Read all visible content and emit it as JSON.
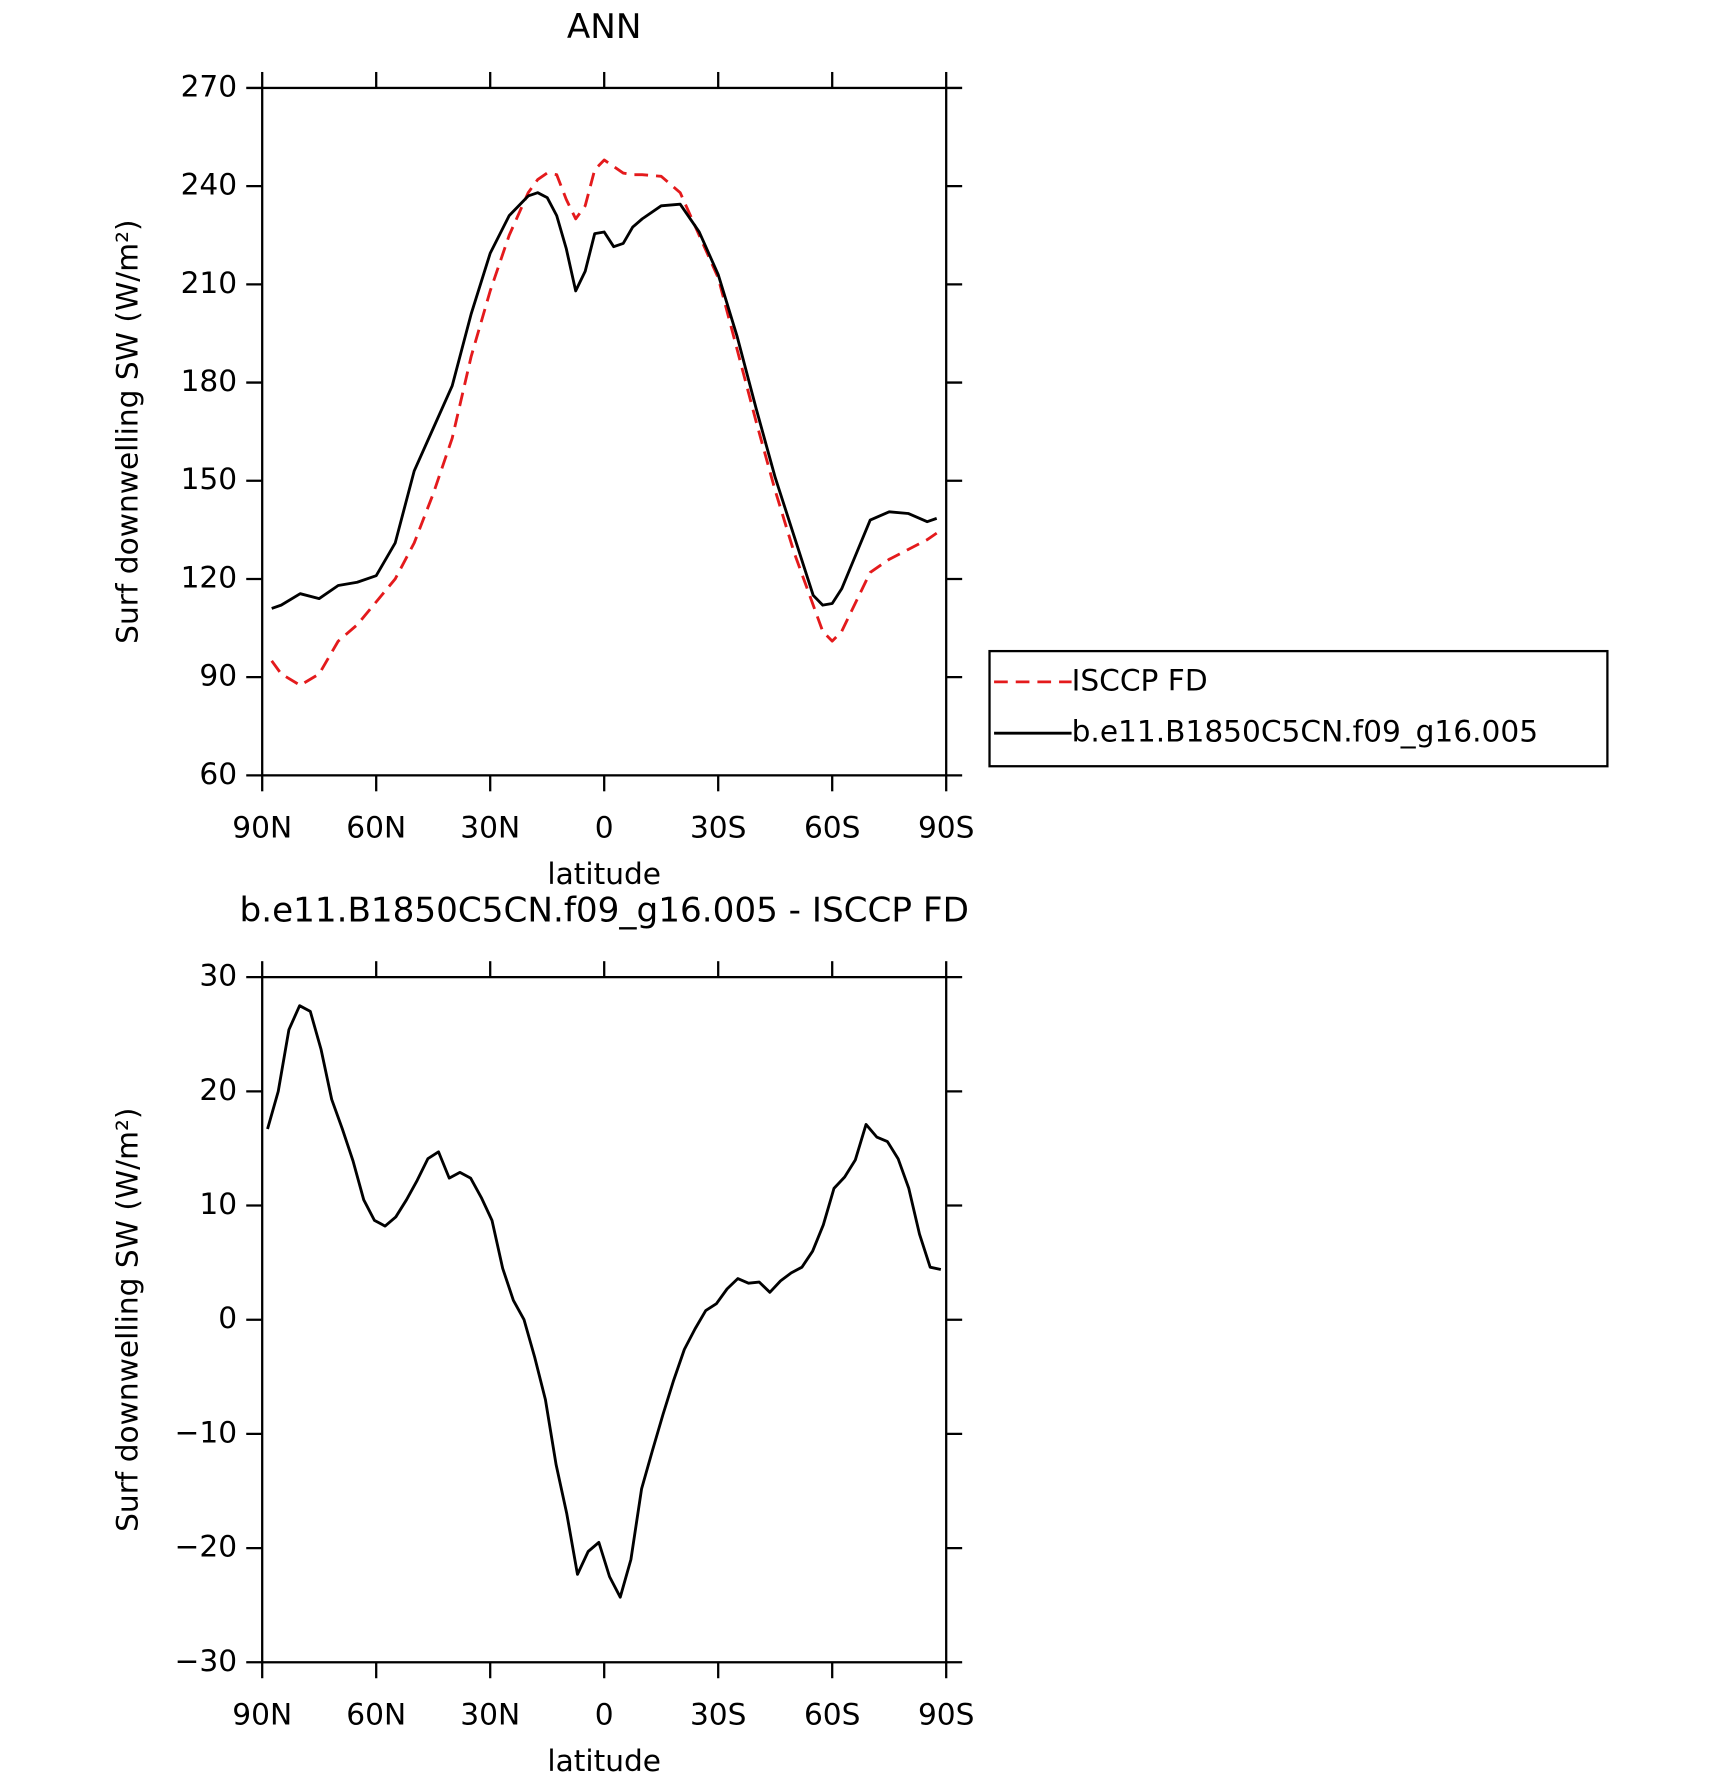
{
  "chart_data": [
    {
      "type": "line",
      "title": "ANN",
      "xlabel": "latitude",
      "ylabel": "Surf downwelling SW (W/m²)",
      "x": [
        87.5,
        85,
        80,
        75,
        70,
        65,
        60,
        55,
        50,
        45,
        40,
        35,
        30,
        25,
        20,
        17.5,
        15,
        12.5,
        10,
        7.5,
        5,
        2.5,
        0,
        -2.5,
        -5,
        -7.5,
        -10,
        -15,
        -20,
        -25,
        -30,
        -35,
        -40,
        -45,
        -50,
        -55,
        -57.5,
        -60,
        -62.5,
        -65,
        -70,
        -75,
        -80,
        -85,
        -87.5
      ],
      "xlim": [
        90,
        -90
      ],
      "xticks": [
        {
          "value": 90,
          "label": "90N"
        },
        {
          "value": 60,
          "label": "60N"
        },
        {
          "value": 30,
          "label": "30N"
        },
        0,
        {
          "value": -30,
          "label": "30S"
        },
        {
          "value": -60,
          "label": "60S"
        },
        {
          "value": -90,
          "label": "90S"
        }
      ],
      "ylim": [
        60,
        270
      ],
      "yticks": [
        60,
        90,
        120,
        150,
        180,
        210,
        240,
        270
      ],
      "legend": "right",
      "series": [
        {
          "name": "ISCCP FD",
          "color": "#e41a1c",
          "linestyle": "dashed",
          "values": [
            95,
            91,
            87.5,
            91,
            101,
            106,
            113,
            120,
            131,
            146,
            163,
            188,
            208,
            225,
            238,
            242,
            244,
            243.5,
            236,
            230,
            234,
            245,
            248,
            246,
            244,
            243.5,
            243.5,
            243,
            238,
            225,
            212,
            190,
            168,
            147,
            128,
            112,
            104,
            101,
            104,
            110,
            122,
            126,
            129,
            132,
            134
          ]
        },
        {
          "name": "b.e11.B1850C5CN.f09_g16.005",
          "color": "#000000",
          "linestyle": "solid",
          "values": [
            111,
            112,
            115.5,
            114,
            118,
            119,
            121,
            131,
            153,
            166,
            179,
            201,
            219.5,
            231,
            237,
            238,
            236.5,
            231,
            221,
            208,
            214,
            225.5,
            226,
            221.5,
            222.5,
            227.5,
            230,
            234,
            234.5,
            226,
            213,
            194,
            172,
            151,
            133,
            115,
            112,
            112.5,
            117,
            124,
            138,
            140.5,
            140,
            137.5,
            138.5
          ]
        }
      ]
    },
    {
      "type": "line",
      "title": "b.e11.B1850C5CN.f09_g16.005 - ISCCP FD",
      "xlabel": "latitude",
      "ylabel": "Surf downwelling SW (W/m²)",
      "x": [
        88.59375,
        85.78125,
        82.96875,
        80.15625,
        77.34375,
        74.53125,
        71.71875,
        68.90625,
        66.09375,
        63.28125,
        60.46875,
        57.65625,
        54.84375,
        52.03125,
        49.21875,
        46.40625,
        43.59375,
        40.78125,
        37.96875,
        35.15625,
        32.34375,
        29.53125,
        26.71875,
        23.90625,
        21.09375,
        18.28125,
        15.46875,
        12.65625,
        9.84375,
        7.03125,
        4.21875,
        1.40625,
        -1.40625,
        -4.21875,
        -7.03125,
        -9.84375,
        -12.65625,
        -15.46875,
        -18.28125,
        -21.09375,
        -23.90625,
        -26.71875,
        -29.53125,
        -32.34375,
        -35.15625,
        -37.96875,
        -40.78125,
        -43.59375,
        -46.40625,
        -49.21875,
        -52.03125,
        -54.84375,
        -57.65625,
        -60.46875,
        -63.28125,
        -66.09375,
        -68.90625,
        -71.71875,
        -74.53125,
        -77.34375,
        -80.15625,
        -82.96875,
        -85.78125,
        -88.59375
      ],
      "xlim": [
        90,
        -90
      ],
      "xticks": [
        {
          "value": 90,
          "label": "90N"
        },
        {
          "value": 60,
          "label": "60N"
        },
        {
          "value": 30,
          "label": "30N"
        },
        0,
        {
          "value": -30,
          "label": "30S"
        },
        {
          "value": -60,
          "label": "60S"
        },
        {
          "value": -90,
          "label": "90S"
        }
      ],
      "ylim": [
        -30,
        30
      ],
      "yticks": [
        {
          "value": -30,
          "label": "−30"
        },
        {
          "value": -20,
          "label": "−20"
        },
        {
          "value": -10,
          "label": "−10"
        },
        0,
        10,
        20,
        30
      ],
      "series": [
        {
          "color": "#000000",
          "linestyle": "solid",
          "values": [
            16.7,
            20,
            25.4,
            27.5,
            27,
            23.7,
            19.3,
            16.7,
            13.9,
            10.5,
            8.7,
            8.2,
            9,
            10.5,
            12.2,
            14.1,
            14.7,
            12.4,
            12.9,
            12.4,
            10.7,
            8.7,
            4.5,
            1.7,
            0,
            -3.3,
            -7,
            -12.7,
            -17,
            -22.3,
            -20.3,
            -19.5,
            -22.5,
            -24.3,
            -21,
            -14.8,
            -11.5,
            -8.3,
            -5.3,
            -2.6,
            -0.8,
            0.8,
            1.4,
            2.7,
            3.6,
            3.2,
            3.3,
            2.4,
            3.4,
            4.1,
            4.6,
            6,
            8.3,
            11.5,
            12.5,
            14,
            17.1,
            16,
            15.6,
            14.1,
            11.5,
            7.5,
            4.6,
            4.4
          ]
        }
      ]
    }
  ]
}
